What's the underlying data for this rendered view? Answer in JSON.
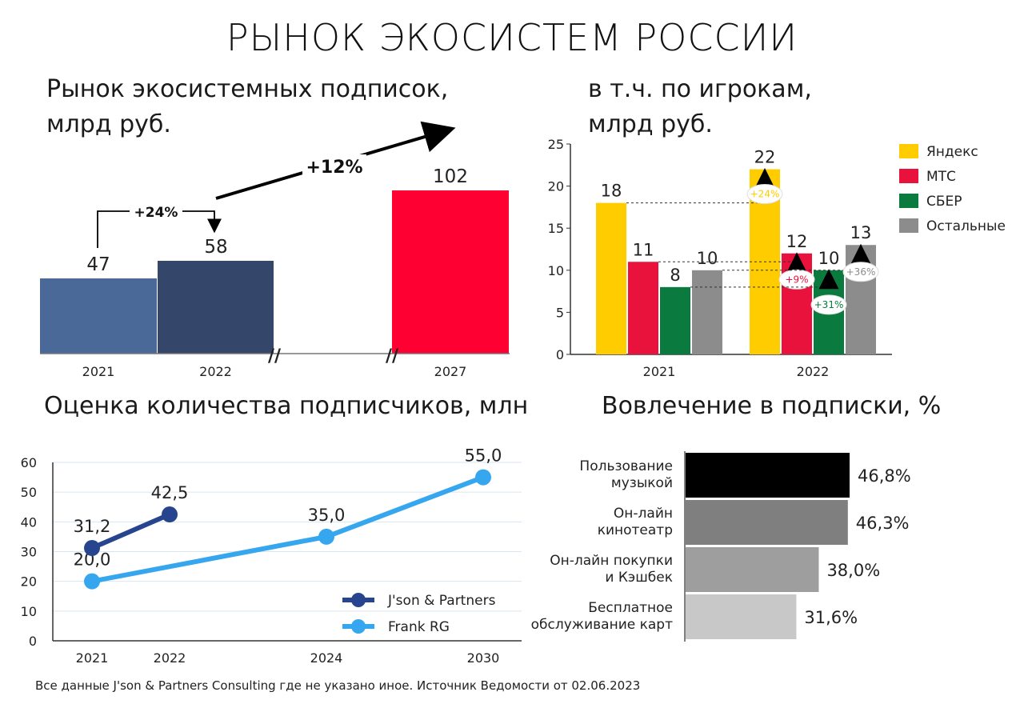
{
  "title": "РЫНОК ЭКОСИСТЕМ РОССИИ",
  "panels": {
    "market": {
      "line1": "Рынок экосистемных подписок,",
      "line2": "млрд руб."
    },
    "players": {
      "line1": "в т.ч. по игрокам,",
      "line2": "млрд руб."
    },
    "subscribers": {
      "title": "Оценка количества подписчиков, млн"
    },
    "engagement": {
      "title": "Вовлечение в подписки, %"
    }
  },
  "footer": "Все данные J'son & Partners Consulting где не указано иное. Источник Ведомости от 02.06.2023",
  "chart_data": [
    {
      "id": "market",
      "type": "bar",
      "categories": [
        "2021",
        "2022",
        "2027"
      ],
      "values": [
        47,
        58,
        102
      ],
      "colors": [
        "#4a6898",
        "#34476a",
        "#ff0033"
      ],
      "axis_break": "//",
      "annotations": [
        {
          "text": "+24%",
          "from": "2021",
          "to": "2022"
        },
        {
          "text": "+12%",
          "from": "2022",
          "to": "2027"
        }
      ]
    },
    {
      "id": "players",
      "type": "bar",
      "categories": [
        "2021",
        "2022"
      ],
      "ylim": [
        0,
        25
      ],
      "yticks": [
        0,
        5,
        10,
        15,
        20,
        25
      ],
      "series": [
        {
          "name": "Яндекс",
          "color": "#ffcc00",
          "values": [
            18,
            22
          ],
          "labels": [
            "18",
            "22"
          ],
          "growth": "+24%"
        },
        {
          "name": "МТС",
          "color": "#e8123c",
          "values": [
            11,
            12
          ],
          "labels": [
            "11",
            "12"
          ],
          "growth": "+9%"
        },
        {
          "name": "СБЕР",
          "color": "#0a7a3e",
          "values": [
            8,
            10
          ],
          "labels": [
            "8",
            "10"
          ],
          "growth": "+31%"
        },
        {
          "name": "Остальные",
          "color": "#8c8c8c",
          "values": [
            10,
            13
          ],
          "labels": [
            "10",
            "13"
          ],
          "growth": "+36%"
        }
      ],
      "legend": "right"
    },
    {
      "id": "subscribers",
      "type": "line",
      "x": [
        "2021",
        "2022",
        "2024",
        "2030"
      ],
      "ylim": [
        0,
        60
      ],
      "yticks": [
        0,
        10,
        20,
        30,
        40,
        50,
        60
      ],
      "grid": true,
      "legend": "bottom-right",
      "series": [
        {
          "name": "J'son & Partners",
          "color": "#26458e",
          "points": [
            {
              "x": "2021",
              "y": 31.2,
              "label": "31,2"
            },
            {
              "x": "2022",
              "y": 42.5,
              "label": "42,5"
            }
          ]
        },
        {
          "name": "Frank RG",
          "color": "#36a6ee",
          "points": [
            {
              "x": "2021",
              "y": 20,
              "label": "20,0"
            },
            {
              "x": "2024",
              "y": 35,
              "label": "35,0"
            },
            {
              "x": "2030",
              "y": 55,
              "label": "55,0"
            }
          ]
        }
      ]
    },
    {
      "id": "engagement",
      "type": "bar",
      "orientation": "horizontal",
      "categories": [
        [
          "Пользование",
          "музыкой"
        ],
        [
          "Он-лайн",
          "кинотеатр"
        ],
        [
          "Он-лайн покупки",
          "и Кэшбек"
        ],
        [
          "Бесплатное",
          "обслуживание карт"
        ]
      ],
      "values": [
        46.8,
        46.3,
        38.0,
        31.6
      ],
      "labels": [
        "46,8%",
        "46,3%",
        "38,0%",
        "31,6%"
      ],
      "colors": [
        "#000000",
        "#7f7f7f",
        "#9e9e9e",
        "#c8c8c8"
      ]
    }
  ]
}
